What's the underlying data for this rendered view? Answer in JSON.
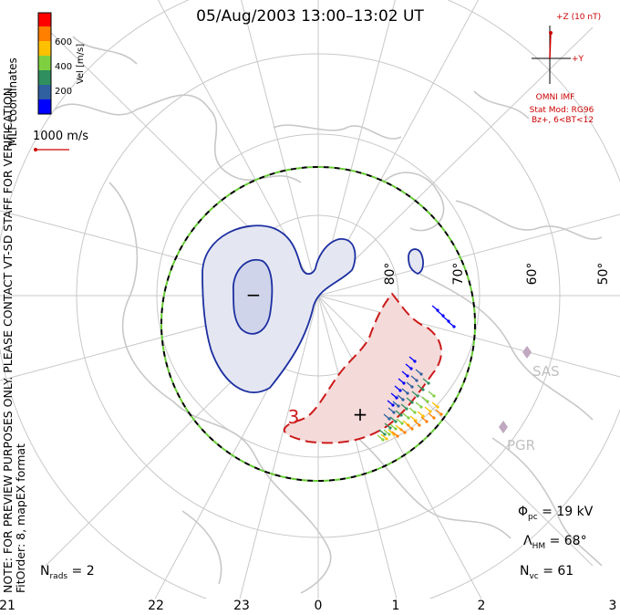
{
  "title": "05/Aug/2003 13:00–13:02 UT",
  "note_line1": "NOTE: FOR PREVIEW PURPOSES ONLY. PLEASE CONTACT VT-SD STAFF FOR VERIFICATION.",
  "note_line2": "FitOrder: 8, mapEX format",
  "coord_label": "MLT coordinates",
  "colorbar": {
    "label": "Vel [m/s]",
    "ticks": [
      "600",
      "400",
      "200"
    ],
    "colors": [
      "#ff0000",
      "#ff7f00",
      "#ffc000",
      "#7fd040",
      "#2f8f5f",
      "#3060a0",
      "#0000ff"
    ]
  },
  "scale_vector_label": "1000 m/s",
  "imf": {
    "z_label": "+Z (10 nT)",
    "y_label": "+Y",
    "source": "OMNI IMF",
    "model": "Stat Mod: RG96",
    "condition": "Bz+, 6<BT<12"
  },
  "latitude_labels": [
    "80°",
    "70°",
    "60°",
    "50°"
  ],
  "radar_labels": [
    "SAS",
    "PGR"
  ],
  "mlt_ticks": [
    "21",
    "22",
    "23",
    "0",
    "1",
    "2",
    "3"
  ],
  "contours": {
    "negative_symbol": "−",
    "positive_symbol": "+",
    "positive_value_label": "3"
  },
  "stats": {
    "phi_pc": "Φ",
    "phi_pc_sub": "pc",
    "phi_pc_value": " = 19 kV",
    "lambda_hm": "Λ",
    "lambda_hm_sub": "HM",
    "lambda_hm_value": " = 68°",
    "n_vc": "N",
    "n_vc_sub": "vc",
    "n_vc_value": " = 61",
    "n_rads": "N",
    "n_rads_sub": "rads",
    "n_rads_value": " = 2"
  },
  "colors": {
    "coastline": "#c8c8c8",
    "grid": "#c8c8c8",
    "negative_contour": "#1c2fa0",
    "negative_fill": "#e4e6f2",
    "positive_contour": "#cc1a1a",
    "positive_fill": "#f5dada",
    "boundary_dash_a": "#000000",
    "boundary_dash_b": "#66cc33",
    "imf": "#cc0000",
    "radar": "#c0a8c0"
  }
}
